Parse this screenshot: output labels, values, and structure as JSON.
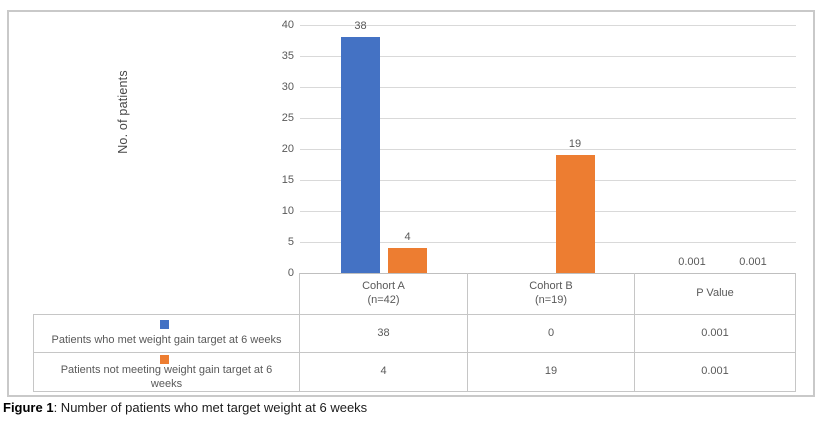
{
  "figure": {
    "caption_bold": "Figure 1",
    "caption_rest": ": Number of patients who met target weight at 6 weeks"
  },
  "chart_data": {
    "type": "bar",
    "title": "",
    "xlabel": "",
    "ylabel": "No. of patients",
    "ylim": [
      0,
      40
    ],
    "yticks": [
      0,
      5,
      10,
      15,
      20,
      25,
      30,
      35,
      40
    ],
    "grid": true,
    "legend_position": "left-of-data-table",
    "categories": [
      "Cohort A (n=42)",
      "Cohort B (n=19)",
      "P Value"
    ],
    "series": [
      {
        "name": "Patients who met weight gain target at 6 weeks",
        "color": "#4472C4",
        "values": [
          38,
          0,
          0.001
        ],
        "data_labels": [
          "38",
          "",
          "0.001"
        ]
      },
      {
        "name": "Patients not meeting weight gain target at 6 weeks",
        "color": "#ED7D31",
        "values": [
          4,
          19,
          0.001
        ],
        "data_labels": [
          "4",
          "19",
          "0.001"
        ]
      }
    ]
  },
  "table": {
    "col_headers": [
      {
        "line1": "Cohort A",
        "line2": "(n=42)"
      },
      {
        "line1": "Cohort B",
        "line2": "(n=19)"
      },
      {
        "line1": "P Value",
        "line2": ""
      }
    ],
    "rows": [
      {
        "label": "Patients who met weight gain target at 6 weeks",
        "values": [
          "38",
          "0",
          "0.001"
        ]
      },
      {
        "label": "Patients not meeting weight gain target at 6 weeks",
        "values": [
          "4",
          "19",
          "0.001"
        ]
      }
    ]
  },
  "colors": {
    "series_blue": "#4472C4",
    "series_orange": "#ED7D31",
    "gridline": "#d9d9d9",
    "axis_line": "#bfbfbf",
    "table_border": "#c6c6c6",
    "text": "#595959"
  }
}
